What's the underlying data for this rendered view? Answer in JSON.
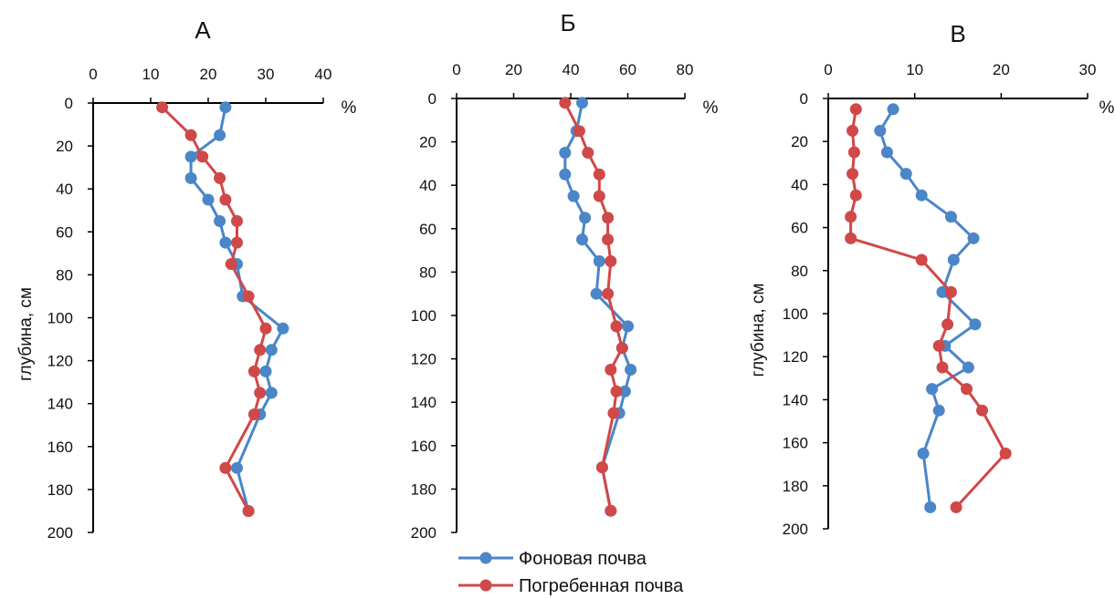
{
  "colors": {
    "background": "#4a86c8",
    "buried": "#d04848",
    "axis": "#000000"
  },
  "legend": [
    {
      "label": "Фоновая почва",
      "color": "#4a86c8"
    },
    {
      "label": "Погребенная почва",
      "color": "#d04848"
    }
  ],
  "chart_data": [
    {
      "type": "line",
      "title": "А",
      "x_unit": "%",
      "ylabel": "глубина, см",
      "xlim": [
        0,
        40
      ],
      "ylim": [
        0,
        200
      ],
      "x_ticks": [
        0,
        10,
        20,
        30,
        40
      ],
      "y_ticks": [
        0,
        20,
        40,
        60,
        80,
        100,
        120,
        140,
        160,
        180,
        200
      ],
      "y_inverted": true,
      "series": [
        {
          "name": "Фоновая почва",
          "points": [
            [
              23,
              2
            ],
            [
              22,
              15
            ],
            [
              17,
              25
            ],
            [
              17,
              35
            ],
            [
              20,
              45
            ],
            [
              22,
              55
            ],
            [
              23,
              65
            ],
            [
              25,
              75
            ],
            [
              26,
              90
            ],
            [
              33,
              105
            ],
            [
              31,
              115
            ],
            [
              30,
              125
            ],
            [
              31,
              135
            ],
            [
              29,
              145
            ],
            [
              25,
              170
            ],
            [
              27,
              190
            ]
          ]
        },
        {
          "name": "Погребенная почва",
          "points": [
            [
              12,
              2
            ],
            [
              17,
              15
            ],
            [
              19,
              25
            ],
            [
              22,
              35
            ],
            [
              23,
              45
            ],
            [
              25,
              55
            ],
            [
              25,
              65
            ],
            [
              24,
              75
            ],
            [
              27,
              90
            ],
            [
              30,
              105
            ],
            [
              29,
              115
            ],
            [
              28,
              125
            ],
            [
              29,
              135
            ],
            [
              28,
              145
            ],
            [
              23,
              170
            ],
            [
              27,
              190
            ]
          ]
        }
      ]
    },
    {
      "type": "line",
      "title": "Б",
      "x_unit": "%",
      "ylabel": "",
      "xlim": [
        0,
        80
      ],
      "ylim": [
        0,
        200
      ],
      "x_ticks": [
        0,
        20,
        40,
        60,
        80
      ],
      "y_ticks": [
        0,
        20,
        40,
        60,
        80,
        100,
        120,
        140,
        160,
        180,
        200
      ],
      "y_inverted": true,
      "series": [
        {
          "name": "Фоновая почва",
          "points": [
            [
              44,
              2
            ],
            [
              42,
              15
            ],
            [
              38,
              25
            ],
            [
              38,
              35
            ],
            [
              41,
              45
            ],
            [
              45,
              55
            ],
            [
              44,
              65
            ],
            [
              50,
              75
            ],
            [
              49,
              90
            ],
            [
              60,
              105
            ],
            [
              58,
              115
            ],
            [
              61,
              125
            ],
            [
              59,
              135
            ],
            [
              57,
              145
            ],
            [
              51,
              170
            ],
            [
              54,
              190
            ]
          ]
        },
        {
          "name": "Погребенная почва",
          "points": [
            [
              38,
              2
            ],
            [
              43,
              15
            ],
            [
              46,
              25
            ],
            [
              50,
              35
            ],
            [
              50,
              45
            ],
            [
              53,
              55
            ],
            [
              53,
              65
            ],
            [
              54,
              75
            ],
            [
              53,
              90
            ],
            [
              56,
              105
            ],
            [
              58,
              115
            ],
            [
              54,
              125
            ],
            [
              56,
              135
            ],
            [
              55,
              145
            ],
            [
              51,
              170
            ],
            [
              54,
              190
            ]
          ]
        }
      ]
    },
    {
      "type": "line",
      "title": "В",
      "x_unit": "%",
      "ylabel": "глубина, см",
      "xlim": [
        0,
        30
      ],
      "ylim": [
        0,
        200
      ],
      "x_ticks": [
        0,
        10,
        20,
        30
      ],
      "y_ticks": [
        0,
        20,
        40,
        60,
        80,
        100,
        120,
        140,
        160,
        180,
        200
      ],
      "y_inverted": true,
      "series": [
        {
          "name": "Фоновая почва",
          "points": [
            [
              7.5,
              5
            ],
            [
              6,
              15
            ],
            [
              6.8,
              25
            ],
            [
              9,
              35
            ],
            [
              10.8,
              45
            ],
            [
              14.2,
              55
            ],
            [
              16.8,
              65
            ],
            [
              14.5,
              75
            ],
            [
              13.2,
              90
            ],
            [
              17,
              105
            ],
            [
              13.5,
              115
            ],
            [
              16.2,
              125
            ],
            [
              12,
              135
            ],
            [
              12.8,
              145
            ],
            [
              11,
              165
            ],
            [
              11.8,
              190
            ]
          ]
        },
        {
          "name": "Погребенная почва",
          "points": [
            [
              3.2,
              5
            ],
            [
              2.8,
              15
            ],
            [
              3,
              25
            ],
            [
              2.8,
              35
            ],
            [
              3.2,
              45
            ],
            [
              2.6,
              55
            ],
            [
              2.6,
              65
            ],
            [
              10.8,
              75
            ],
            [
              14.2,
              90
            ],
            [
              13.8,
              105
            ],
            [
              12.8,
              115
            ],
            [
              13.2,
              125
            ],
            [
              16,
              135
            ],
            [
              17.8,
              145
            ],
            [
              20.5,
              165
            ],
            [
              14.8,
              190
            ]
          ]
        }
      ]
    }
  ]
}
